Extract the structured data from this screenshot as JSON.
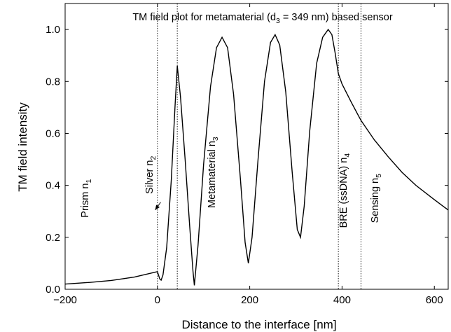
{
  "chart_data": {
    "type": "line",
    "title": {
      "main": "TM field plot for metamaterial (d",
      "sub": "3",
      "rest": " = 349 nm) based sensor"
    },
    "xlabel": "Distance to the interface [nm]",
    "ylabel": "TM field intensity",
    "xlim": [
      -200,
      630
    ],
    "ylim": [
      0,
      1.1
    ],
    "x_ticks": [
      -200,
      0,
      200,
      400,
      600
    ],
    "x_tick_labels": [
      "−200",
      "0",
      "200",
      "400",
      "600"
    ],
    "y_ticks": [
      0.0,
      0.2,
      0.4,
      0.6,
      0.8,
      1.0
    ],
    "y_tick_labels": [
      "0.0",
      "0.2",
      "0.4",
      "0.6",
      "0.8",
      "1.0"
    ],
    "grid": false,
    "boundaries": [
      0,
      43,
      392,
      441
    ],
    "regions": [
      {
        "base": "Prism n",
        "sub": "1",
        "x": -150,
        "y": 0.35
      },
      {
        "base": "Silver n",
        "sub": "2",
        "x": -10,
        "y": 0.44
      },
      {
        "base": "Metamaterial n",
        "sub": "3",
        "x": 125,
        "y": 0.45
      },
      {
        "base": "BRE (ssDNA) n",
        "sub": "4",
        "x": 410,
        "y": 0.38
      },
      {
        "base": "Sensing n",
        "sub": "5",
        "x": 478,
        "y": 0.35
      }
    ],
    "arrow": {
      "from": [
        7,
        0.335
      ],
      "to": [
        -5,
        0.305
      ]
    },
    "series": [
      {
        "values": [
          [
            -200,
            0.02
          ],
          [
            -150,
            0.026
          ],
          [
            -100,
            0.034
          ],
          [
            -50,
            0.047
          ],
          [
            0,
            0.068
          ],
          [
            5,
            0.04
          ],
          [
            8,
            0.035
          ],
          [
            12,
            0.055
          ],
          [
            20,
            0.16
          ],
          [
            30,
            0.42
          ],
          [
            38,
            0.7
          ],
          [
            43,
            0.86
          ],
          [
            50,
            0.74
          ],
          [
            60,
            0.5
          ],
          [
            70,
            0.24
          ],
          [
            77,
            0.07
          ],
          [
            80,
            0.015
          ],
          [
            88,
            0.17
          ],
          [
            100,
            0.48
          ],
          [
            115,
            0.78
          ],
          [
            128,
            0.93
          ],
          [
            140,
            0.97
          ],
          [
            152,
            0.93
          ],
          [
            165,
            0.75
          ],
          [
            180,
            0.42
          ],
          [
            190,
            0.18
          ],
          [
            197,
            0.1
          ],
          [
            205,
            0.2
          ],
          [
            218,
            0.5
          ],
          [
            232,
            0.8
          ],
          [
            245,
            0.95
          ],
          [
            255,
            0.98
          ],
          [
            265,
            0.94
          ],
          [
            278,
            0.76
          ],
          [
            292,
            0.45
          ],
          [
            303,
            0.23
          ],
          [
            310,
            0.2
          ],
          [
            318,
            0.32
          ],
          [
            330,
            0.61
          ],
          [
            345,
            0.87
          ],
          [
            358,
            0.97
          ],
          [
            370,
            1.0
          ],
          [
            378,
            0.98
          ],
          [
            385,
            0.91
          ],
          [
            392,
            0.83
          ],
          [
            400,
            0.79
          ],
          [
            420,
            0.72
          ],
          [
            441,
            0.65
          ],
          [
            470,
            0.575
          ],
          [
            500,
            0.51
          ],
          [
            530,
            0.45
          ],
          [
            560,
            0.4
          ],
          [
            600,
            0.345
          ],
          [
            630,
            0.305
          ]
        ]
      }
    ]
  }
}
